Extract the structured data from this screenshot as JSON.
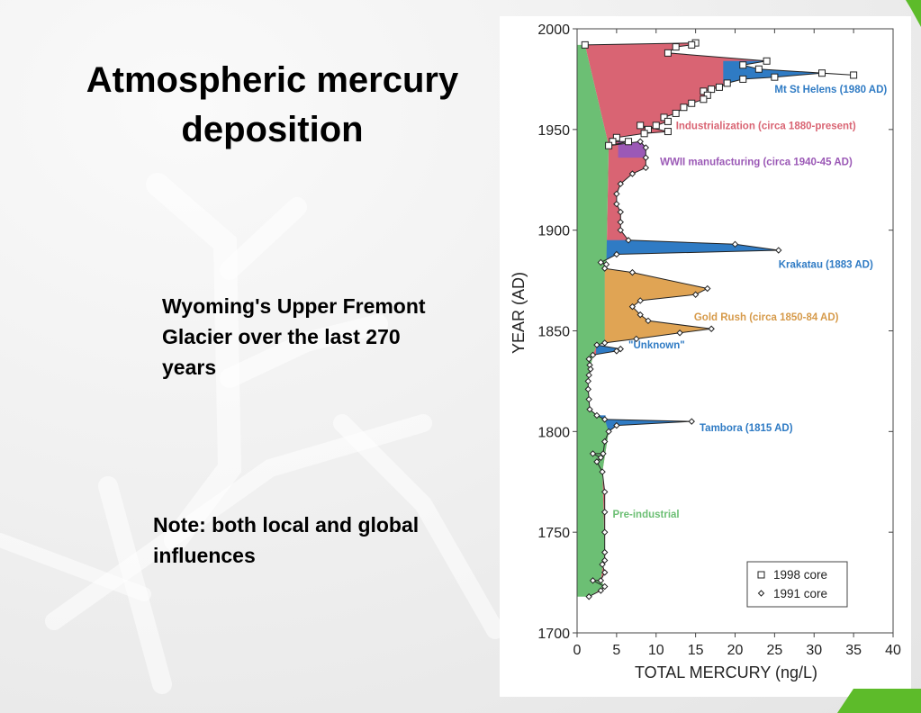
{
  "slide": {
    "title": "Atmospheric mercury deposition",
    "subtitle": "Wyoming's Upper Fremont Glacier over the last 270 years",
    "note": "Note: both local and global influences"
  },
  "colors": {
    "accent_green": "#5dbb2a",
    "pre_industrial": "#6cbf74",
    "industrialization": "#d96473",
    "ww2": "#9b59b6",
    "volcanic": "#2f7bc4",
    "gold_rush": "#e0a454",
    "gold_rush_text": "#d69a4a"
  },
  "chart_data": {
    "type": "area",
    "xlabel": "TOTAL MERCURY (ng/L)",
    "ylabel": "YEAR (AD)",
    "xlim": [
      0,
      40
    ],
    "ylim": [
      1700,
      2000
    ],
    "x_ticks": [
      0,
      5,
      10,
      15,
      20,
      25,
      30,
      35,
      40
    ],
    "y_ticks": [
      1700,
      1750,
      1800,
      1850,
      1900,
      1950,
      2000
    ],
    "grid": false,
    "legend": {
      "position": "bottom-right",
      "entries": [
        "1998 core",
        "1991 core"
      ]
    },
    "series": [
      {
        "name": "1998 core",
        "marker": "square",
        "points": [
          [
            1.0,
            1992
          ],
          [
            15.0,
            1993
          ],
          [
            14.5,
            1992
          ],
          [
            12.5,
            1991
          ],
          [
            11.5,
            1988
          ],
          [
            24.0,
            1984
          ],
          [
            21.0,
            1982
          ],
          [
            23.0,
            1980
          ],
          [
            35.0,
            1977
          ],
          [
            31.0,
            1978
          ],
          [
            25.0,
            1976
          ],
          [
            21.0,
            1975
          ],
          [
            19.0,
            1973
          ],
          [
            18.0,
            1971
          ],
          [
            17.0,
            1970
          ],
          [
            16.0,
            1969
          ],
          [
            16.5,
            1967
          ],
          [
            16.0,
            1965
          ],
          [
            14.5,
            1963
          ],
          [
            13.5,
            1961
          ],
          [
            12.5,
            1958
          ],
          [
            11.0,
            1956
          ],
          [
            11.5,
            1954
          ],
          [
            10.0,
            1952
          ],
          [
            9.0,
            1950
          ],
          [
            8.0,
            1952
          ],
          [
            11.5,
            1949
          ],
          [
            8.5,
            1948
          ],
          [
            5.0,
            1946
          ],
          [
            4.5,
            1944
          ],
          [
            6.5,
            1944
          ],
          [
            4.0,
            1942
          ]
        ]
      },
      {
        "name": "1991 core",
        "marker": "diamond",
        "points": [
          [
            8.0,
            1944
          ],
          [
            8.7,
            1941
          ],
          [
            8.7,
            1936
          ],
          [
            8.7,
            1931
          ],
          [
            7.0,
            1928
          ],
          [
            5.5,
            1923
          ],
          [
            5.0,
            1918
          ],
          [
            5.0,
            1913
          ],
          [
            5.5,
            1909
          ],
          [
            5.5,
            1904
          ],
          [
            5.5,
            1900
          ],
          [
            6.5,
            1895
          ],
          [
            20.0,
            1893
          ],
          [
            25.5,
            1890
          ],
          [
            5.0,
            1888
          ],
          [
            3.0,
            1884
          ],
          [
            3.7,
            1883
          ],
          [
            3.5,
            1881
          ],
          [
            7.0,
            1879
          ],
          [
            16.5,
            1871
          ],
          [
            15.0,
            1868
          ],
          [
            8.0,
            1865
          ],
          [
            7.0,
            1862
          ],
          [
            8.0,
            1858
          ],
          [
            9.0,
            1855
          ],
          [
            17.0,
            1851
          ],
          [
            13.0,
            1849
          ],
          [
            7.5,
            1846
          ],
          [
            3.5,
            1844
          ],
          [
            2.5,
            1843
          ],
          [
            5.5,
            1841
          ],
          [
            5.0,
            1840
          ],
          [
            2.0,
            1838
          ],
          [
            1.5,
            1836
          ],
          [
            1.6,
            1833
          ],
          [
            1.7,
            1831
          ],
          [
            1.5,
            1828
          ],
          [
            1.4,
            1825
          ],
          [
            1.4,
            1821
          ],
          [
            1.5,
            1816
          ],
          [
            1.6,
            1811
          ],
          [
            2.5,
            1808
          ],
          [
            3.5,
            1806
          ],
          [
            14.5,
            1805
          ],
          [
            5.0,
            1803
          ],
          [
            4.0,
            1800
          ],
          [
            3.5,
            1795
          ],
          [
            3.3,
            1789
          ],
          [
            2.0,
            1789
          ],
          [
            3.0,
            1787
          ],
          [
            2.5,
            1785
          ],
          [
            3.2,
            1780
          ],
          [
            3.5,
            1770
          ],
          [
            3.5,
            1760
          ],
          [
            3.5,
            1750
          ],
          [
            3.5,
            1740
          ],
          [
            3.5,
            1736
          ],
          [
            3.2,
            1734
          ],
          [
            3.5,
            1730
          ],
          [
            3.0,
            1726
          ],
          [
            2.0,
            1726
          ],
          [
            3.5,
            1723
          ],
          [
            3.0,
            1721
          ],
          [
            1.5,
            1718
          ]
        ]
      }
    ],
    "baseline": {
      "name": "Pre-industrial",
      "points": [
        [
          1.0,
          1992
        ],
        [
          4.0,
          1942
        ],
        [
          3.7,
          1883
        ],
        [
          3.5,
          1881
        ],
        [
          3.5,
          1844
        ],
        [
          2.5,
          1843
        ],
        [
          2.0,
          1838
        ],
        [
          1.4,
          1825
        ],
        [
          1.6,
          1811
        ],
        [
          2.5,
          1808
        ],
        [
          3.5,
          1806
        ],
        [
          4.0,
          1800
        ],
        [
          3.2,
          1780
        ],
        [
          3.5,
          1740
        ],
        [
          3.0,
          1726
        ],
        [
          3.5,
          1723
        ],
        [
          1.5,
          1718
        ]
      ]
    },
    "shaded_regions": [
      {
        "name": "Pre-industrial",
        "color_key": "pre_industrial"
      },
      {
        "name": "Industrialization (circa 1880-present)",
        "color_key": "industrialization"
      },
      {
        "name": "WWII manufacturing (circa 1940-45 AD)",
        "color_key": "ww2"
      },
      {
        "name": "Mt St Helens (1980 AD)",
        "color_key": "volcanic"
      },
      {
        "name": "Krakatau (1883 AD)",
        "color_key": "volcanic"
      },
      {
        "name": "Gold Rush (circa 1850-84 AD)",
        "color_key": "gold_rush"
      },
      {
        "name": "\"Unknown\"",
        "color_key": "volcanic"
      },
      {
        "name": "Tambora (1815 AD)",
        "color_key": "volcanic"
      }
    ],
    "annotations": [
      {
        "text": "Mt St Helens (1980 AD)",
        "x": 25.0,
        "y": 1970,
        "color_key": "volcanic"
      },
      {
        "text": "Industrialization (circa 1880-present)",
        "x": 12.5,
        "y": 1952,
        "color_key": "industrialization"
      },
      {
        "text": "WWII manufacturing (circa 1940-45 AD)",
        "x": 10.5,
        "y": 1934,
        "color_key": "ww2"
      },
      {
        "text": "Krakatau (1883 AD)",
        "x": 25.5,
        "y": 1883,
        "color_key": "volcanic"
      },
      {
        "text": "Gold Rush (circa 1850-84 AD)",
        "x": 14.8,
        "y": 1857,
        "color_key": "gold_rush_text"
      },
      {
        "text": "\"Unknown\"",
        "x": 6.5,
        "y": 1843,
        "color_key": "volcanic"
      },
      {
        "text": "Tambora (1815 AD)",
        "x": 15.5,
        "y": 1802,
        "color_key": "volcanic"
      },
      {
        "text": "Pre-industrial",
        "x": 4.5,
        "y": 1759,
        "color_key": "pre_industrial"
      }
    ]
  }
}
